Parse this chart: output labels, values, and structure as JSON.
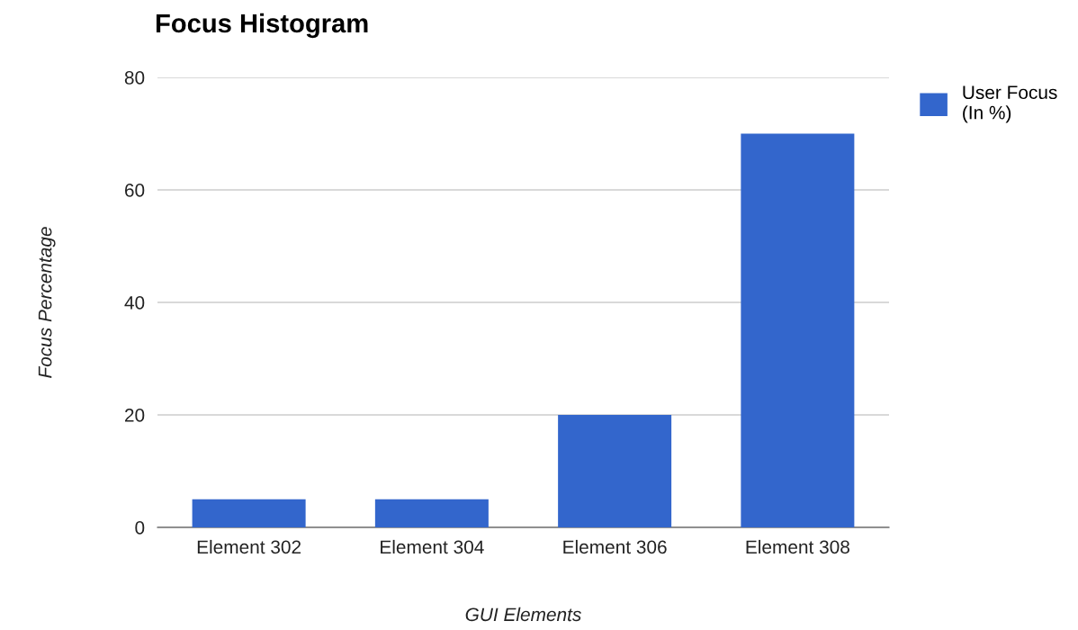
{
  "chart_data": {
    "type": "bar",
    "title": "Focus Histogram",
    "xlabel": "GUI Elements",
    "ylabel": "Focus Percentage",
    "categories": [
      "Element 302",
      "Element 304",
      "Element 306",
      "Element 308"
    ],
    "series": [
      {
        "name": "User Focus\n(In %)",
        "color": "#3366cc",
        "values": [
          5,
          5,
          20,
          70
        ]
      }
    ],
    "ylim": [
      0,
      80
    ],
    "yticks": [
      0,
      20,
      40,
      60,
      80
    ],
    "grid": "y",
    "legend": "top right"
  }
}
